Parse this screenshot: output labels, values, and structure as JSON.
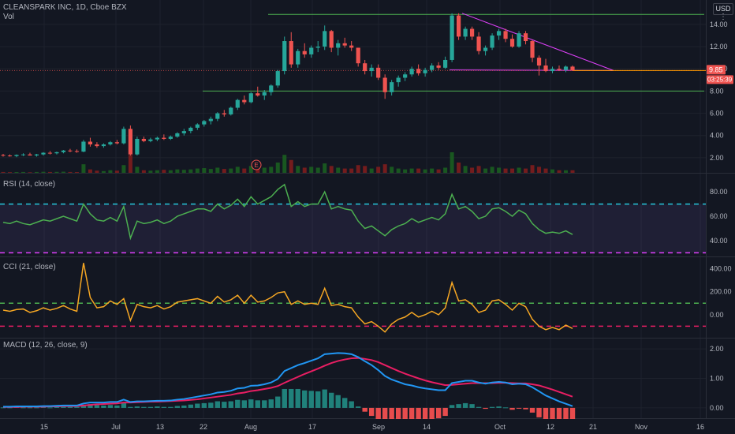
{
  "header": {
    "title": "CLEANSPARK INC, 1D, Cboe BZX",
    "vol_label": "Vol",
    "currency_button": "USD",
    "menu_icon": "vertical-dots-icon"
  },
  "price_panel": {
    "y_ticks": [
      "14.00",
      "12.00",
      "10.00",
      "8.00",
      "6.00",
      "4.00",
      "2.00"
    ],
    "last_price_label": "9.85",
    "countdown_label": "03:25:39",
    "earnings_marker": "E"
  },
  "rsi_panel": {
    "label": "RSI (14, close)",
    "y_ticks": [
      "80.00",
      "60.00",
      "40.00"
    ]
  },
  "cci_panel": {
    "label": "CCI (21, close)",
    "y_ticks": [
      "400.00",
      "200.00",
      "0.00"
    ]
  },
  "macd_panel": {
    "label": "MACD (12, 26, close, 9)",
    "y_ticks": [
      "2.00",
      "1.00",
      "0.00"
    ]
  },
  "x_axis": {
    "labels": [
      "15",
      "Jul",
      "13",
      "22",
      "Aug",
      "17",
      "Sep",
      "14",
      "Oct",
      "12",
      "21",
      "Nov",
      "16"
    ]
  },
  "colors": {
    "background": "#131722",
    "up": "#26a69a",
    "down": "#ef5350",
    "rsi_line": "#4caf50",
    "cci_line": "#f5a623",
    "macd_line": "#2196f3",
    "signal_line": "#e91e63",
    "trendline_green": "#4caf50",
    "trendline_magenta": "#e040fb"
  },
  "chart_data": [
    {
      "type": "candlestick",
      "title": "CLEANSPARK INC, 1D, Cboe BZX",
      "ylim": [
        1.0,
        15.2
      ],
      "ohlc": [
        [
          2.25,
          2.35,
          2.1,
          2.2
        ],
        [
          2.2,
          2.3,
          2.1,
          2.15
        ],
        [
          2.15,
          2.3,
          2.05,
          2.25
        ],
        [
          2.25,
          2.4,
          2.15,
          2.3
        ],
        [
          2.3,
          2.45,
          2.2,
          2.2
        ],
        [
          2.2,
          2.35,
          2.1,
          2.3
        ],
        [
          2.3,
          2.5,
          2.2,
          2.45
        ],
        [
          2.45,
          2.6,
          2.3,
          2.4
        ],
        [
          2.4,
          2.55,
          2.3,
          2.5
        ],
        [
          2.5,
          2.7,
          2.4,
          2.65
        ],
        [
          2.65,
          2.8,
          2.5,
          2.6
        ],
        [
          2.6,
          2.75,
          2.45,
          2.55
        ],
        [
          2.55,
          3.6,
          2.5,
          3.45
        ],
        [
          3.45,
          3.8,
          3.0,
          3.2
        ],
        [
          3.2,
          3.4,
          2.9,
          3.05
        ],
        [
          3.05,
          3.3,
          2.9,
          3.2
        ],
        [
          3.2,
          3.5,
          3.1,
          3.4
        ],
        [
          3.4,
          3.6,
          3.2,
          3.3
        ],
        [
          3.3,
          4.8,
          3.2,
          4.6
        ],
        [
          4.6,
          4.9,
          2.2,
          2.3
        ],
        [
          2.3,
          3.9,
          2.2,
          3.7
        ],
        [
          3.7,
          3.9,
          3.4,
          3.5
        ],
        [
          3.5,
          3.8,
          3.4,
          3.65
        ],
        [
          3.65,
          3.9,
          3.5,
          3.8
        ],
        [
          3.8,
          4.1,
          3.6,
          3.7
        ],
        [
          3.7,
          4.0,
          3.6,
          3.9
        ],
        [
          3.9,
          4.3,
          3.8,
          4.2
        ],
        [
          4.2,
          4.6,
          4.0,
          4.4
        ],
        [
          4.4,
          4.8,
          4.2,
          4.7
        ],
        [
          4.7,
          5.1,
          4.5,
          5.0
        ],
        [
          5.0,
          5.4,
          4.8,
          5.3
        ],
        [
          5.3,
          5.7,
          5.0,
          5.5
        ],
        [
          5.5,
          6.1,
          5.3,
          6.0
        ],
        [
          6.0,
          6.3,
          5.7,
          5.9
        ],
        [
          5.9,
          6.6,
          5.8,
          6.5
        ],
        [
          6.5,
          7.3,
          6.3,
          7.2
        ],
        [
          7.2,
          7.6,
          6.8,
          7.0
        ],
        [
          7.0,
          7.9,
          6.9,
          7.8
        ],
        [
          7.8,
          8.4,
          7.5,
          7.6
        ],
        [
          7.6,
          8.1,
          7.2,
          7.9
        ],
        [
          7.9,
          8.6,
          7.6,
          8.5
        ],
        [
          8.5,
          9.9,
          8.3,
          9.8
        ],
        [
          9.8,
          12.9,
          9.5,
          12.5
        ],
        [
          12.5,
          13.3,
          10.1,
          10.4
        ],
        [
          10.4,
          11.8,
          10.1,
          11.6
        ],
        [
          11.6,
          12.3,
          11.0,
          11.3
        ],
        [
          11.3,
          12.1,
          11.0,
          11.9
        ],
        [
          11.9,
          12.5,
          11.5,
          12.0
        ],
        [
          12.0,
          13.9,
          11.7,
          13.4
        ],
        [
          13.4,
          13.5,
          11.5,
          11.9
        ],
        [
          11.9,
          12.6,
          11.2,
          12.3
        ],
        [
          12.3,
          12.8,
          11.9,
          12.1
        ],
        [
          12.1,
          12.5,
          11.6,
          11.9
        ],
        [
          11.9,
          11.9,
          10.2,
          10.5
        ],
        [
          10.5,
          10.8,
          9.5,
          9.8
        ],
        [
          9.8,
          10.4,
          9.3,
          10.1
        ],
        [
          10.1,
          10.4,
          9.0,
          9.2
        ],
        [
          9.2,
          9.5,
          7.3,
          7.9
        ],
        [
          7.9,
          9.0,
          7.6,
          8.8
        ],
        [
          8.8,
          9.4,
          8.4,
          9.2
        ],
        [
          9.2,
          9.7,
          8.9,
          9.5
        ],
        [
          9.5,
          10.2,
          9.3,
          10.0
        ],
        [
          10.0,
          10.4,
          9.4,
          9.6
        ],
        [
          9.6,
          10.1,
          9.3,
          9.9
        ],
        [
          9.9,
          10.5,
          9.7,
          10.3
        ],
        [
          10.3,
          10.6,
          9.9,
          10.1
        ],
        [
          10.1,
          11.1,
          10.0,
          10.8
        ],
        [
          10.8,
          15.0,
          10.6,
          14.8
        ],
        [
          14.8,
          15.0,
          12.6,
          12.9
        ],
        [
          12.9,
          13.8,
          12.6,
          13.6
        ],
        [
          13.6,
          13.8,
          12.6,
          12.9
        ],
        [
          12.9,
          13.3,
          11.3,
          11.6
        ],
        [
          11.6,
          12.1,
          11.2,
          11.9
        ],
        [
          11.9,
          13.2,
          11.7,
          13.0
        ],
        [
          13.0,
          13.6,
          12.6,
          13.4
        ],
        [
          13.4,
          13.6,
          12.4,
          12.7
        ],
        [
          12.7,
          13.1,
          11.9,
          12.0
        ],
        [
          12.0,
          13.4,
          11.9,
          13.2
        ],
        [
          13.2,
          13.4,
          12.2,
          12.5
        ],
        [
          12.5,
          12.6,
          10.6,
          11.0
        ],
        [
          11.0,
          11.2,
          9.4,
          10.3
        ],
        [
          10.3,
          10.9,
          9.7,
          9.8
        ],
        [
          9.8,
          10.2,
          9.6,
          10.0
        ],
        [
          10.0,
          10.3,
          9.8,
          9.9
        ],
        [
          9.9,
          10.3,
          9.7,
          10.2
        ],
        [
          10.2,
          10.3,
          9.8,
          9.85
        ]
      ],
      "volume": [
        0.1,
        0.08,
        0.09,
        0.1,
        0.07,
        0.1,
        0.12,
        0.1,
        0.11,
        0.13,
        0.1,
        0.09,
        1.0,
        0.4,
        0.25,
        0.2,
        0.3,
        0.25,
        0.9,
        2.1,
        0.7,
        0.3,
        0.25,
        0.3,
        0.35,
        0.3,
        0.4,
        0.35,
        0.4,
        0.5,
        0.55,
        0.45,
        0.6,
        0.45,
        0.5,
        0.7,
        0.5,
        0.8,
        0.5,
        0.6,
        0.7,
        1.2,
        2.1,
        1.5,
        0.8,
        0.6,
        0.7,
        0.6,
        1.1,
        0.8,
        0.6,
        0.5,
        0.5,
        0.9,
        0.8,
        0.5,
        0.7,
        1.0,
        0.7,
        0.5,
        0.4,
        0.5,
        0.5,
        0.4,
        0.5,
        0.4,
        0.6,
        2.4,
        1.2,
        0.8,
        0.6,
        0.8,
        0.5,
        0.7,
        0.6,
        0.5,
        0.5,
        0.6,
        0.5,
        0.9,
        0.7,
        0.5,
        0.4,
        0.3,
        0.3,
        0.3
      ]
    },
    {
      "type": "line",
      "title": "RSI (14, close)",
      "ylim": [
        27,
        95
      ],
      "levels": [
        70,
        30
      ],
      "series": [
        {
          "values": [
            55,
            54,
            56,
            54,
            53,
            55,
            57,
            56,
            58,
            60,
            58,
            56,
            70,
            62,
            57,
            56,
            59,
            56,
            68,
            42,
            56,
            54,
            55,
            57,
            54,
            56,
            60,
            62,
            64,
            66,
            66,
            64,
            70,
            66,
            69,
            74,
            68,
            76,
            70,
            73,
            76,
            82,
            86,
            68,
            72,
            68,
            70,
            70,
            80,
            66,
            68,
            66,
            65,
            56,
            50,
            52,
            48,
            44,
            49,
            52,
            54,
            58,
            55,
            57,
            59,
            57,
            62,
            78,
            66,
            68,
            64,
            58,
            60,
            66,
            67,
            64,
            60,
            65,
            62,
            54,
            49,
            46,
            47,
            46,
            48,
            45
          ]
        }
      ]
    },
    {
      "type": "line",
      "title": "CCI (21, close)",
      "ylim": [
        -200,
        500
      ],
      "levels": [
        100,
        -100
      ],
      "series": [
        {
          "values": [
            40,
            30,
            45,
            50,
            20,
            35,
            60,
            40,
            55,
            80,
            50,
            30,
            450,
            150,
            60,
            70,
            120,
            90,
            140,
            -50,
            90,
            70,
            60,
            80,
            50,
            70,
            110,
            120,
            130,
            140,
            120,
            100,
            160,
            110,
            130,
            170,
            100,
            170,
            110,
            120,
            150,
            190,
            200,
            90,
            120,
            90,
            100,
            90,
            230,
            80,
            90,
            70,
            60,
            -20,
            -80,
            -60,
            -100,
            -150,
            -80,
            -40,
            -20,
            20,
            -20,
            0,
            30,
            0,
            60,
            280,
            120,
            130,
            90,
            20,
            40,
            120,
            130,
            90,
            40,
            100,
            70,
            -40,
            -100,
            -130,
            -110,
            -130,
            -90,
            -120
          ]
        }
      ]
    },
    {
      "type": "line",
      "title": "MACD (12, 26, close, 9)",
      "ylim": [
        -0.35,
        2.35
      ],
      "series": [
        {
          "values": [
            0.04,
            0.04,
            0.05,
            0.05,
            0.05,
            0.05,
            0.06,
            0.06,
            0.07,
            0.08,
            0.08,
            0.08,
            0.15,
            0.18,
            0.18,
            0.18,
            0.2,
            0.2,
            0.28,
            0.2,
            0.22,
            0.22,
            0.23,
            0.24,
            0.24,
            0.25,
            0.28,
            0.3,
            0.34,
            0.38,
            0.42,
            0.46,
            0.52,
            0.54,
            0.58,
            0.66,
            0.68,
            0.75,
            0.76,
            0.8,
            0.86,
            0.98,
            1.25,
            1.35,
            1.45,
            1.52,
            1.6,
            1.68,
            1.82,
            1.84,
            1.86,
            1.85,
            1.82,
            1.72,
            1.58,
            1.45,
            1.28,
            1.08,
            0.96,
            0.88,
            0.8,
            0.76,
            0.7,
            0.66,
            0.63,
            0.6,
            0.6,
            0.84,
            0.88,
            0.92,
            0.92,
            0.86,
            0.82,
            0.86,
            0.88,
            0.86,
            0.8,
            0.82,
            0.8,
            0.7,
            0.56,
            0.42,
            0.32,
            0.22,
            0.14,
            0.06
          ]
        },
        {
          "values": [
            0.03,
            0.03,
            0.03,
            0.04,
            0.04,
            0.04,
            0.04,
            0.05,
            0.05,
            0.06,
            0.06,
            0.06,
            0.08,
            0.1,
            0.12,
            0.13,
            0.14,
            0.15,
            0.18,
            0.18,
            0.19,
            0.2,
            0.21,
            0.21,
            0.22,
            0.23,
            0.24,
            0.25,
            0.27,
            0.29,
            0.32,
            0.35,
            0.38,
            0.41,
            0.44,
            0.49,
            0.52,
            0.57,
            0.6,
            0.64,
            0.68,
            0.74,
            0.85,
            0.95,
            1.05,
            1.15,
            1.24,
            1.33,
            1.43,
            1.52,
            1.59,
            1.64,
            1.68,
            1.69,
            1.66,
            1.62,
            1.55,
            1.45,
            1.35,
            1.25,
            1.16,
            1.08,
            1.0,
            0.93,
            0.87,
            0.82,
            0.77,
            0.78,
            0.8,
            0.82,
            0.84,
            0.84,
            0.84,
            0.84,
            0.85,
            0.85,
            0.84,
            0.83,
            0.83,
            0.8,
            0.76,
            0.69,
            0.62,
            0.54,
            0.46,
            0.38
          ]
        }
      ]
    }
  ]
}
